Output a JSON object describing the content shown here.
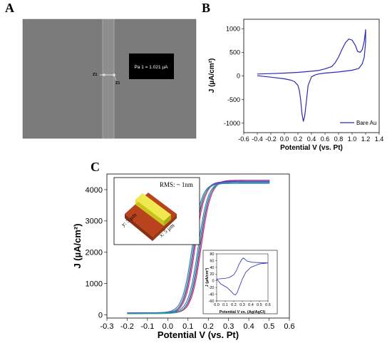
{
  "panels": {
    "a": {
      "letter": "A"
    },
    "b": {
      "letter": "B"
    },
    "c": {
      "letter": "C"
    }
  },
  "sem": {
    "annotation": "Pa 1 = 1.021 µA",
    "marker_left": "Z1",
    "marker_right": "Z1"
  },
  "chart_data": [
    {
      "panel": "B",
      "type": "line",
      "xlabel": "Potential V (vs. Pt)",
      "ylabel": "J (µA/cm²)",
      "xlim": [
        -0.6,
        1.4
      ],
      "ylim": [
        -1200,
        1200
      ],
      "x_ticks": [
        "-0.6",
        "-0.4",
        "-0.2",
        "0.0",
        "0.2",
        "0.4",
        "0.6",
        "0.8",
        "1.0",
        "1.2",
        "1.4"
      ],
      "y_ticks": [
        "-1000",
        "-500",
        "0",
        "500",
        "1000"
      ],
      "legend_position": "bottom-right",
      "color": "#2a2ab8",
      "series": [
        {
          "name": "Bare Au",
          "points": [
            [
              -0.4,
              40
            ],
            [
              -0.2,
              50
            ],
            [
              0.0,
              60
            ],
            [
              0.2,
              75
            ],
            [
              0.4,
              100
            ],
            [
              0.5,
              115
            ],
            [
              0.6,
              150
            ],
            [
              0.7,
              200
            ],
            [
              0.75,
              280
            ],
            [
              0.8,
              400
            ],
            [
              0.85,
              560
            ],
            [
              0.9,
              700
            ],
            [
              0.95,
              780
            ],
            [
              1.0,
              760
            ],
            [
              1.05,
              640
            ],
            [
              1.08,
              520
            ],
            [
              1.12,
              500
            ],
            [
              1.15,
              560
            ],
            [
              1.18,
              740
            ],
            [
              1.2,
              980
            ],
            [
              1.2,
              720
            ],
            [
              1.18,
              400
            ],
            [
              1.15,
              260
            ],
            [
              1.1,
              160
            ],
            [
              1.0,
              120
            ],
            [
              0.8,
              85
            ],
            [
              0.6,
              60
            ],
            [
              0.5,
              40
            ],
            [
              0.45,
              20
            ],
            [
              0.4,
              -20
            ],
            [
              0.35,
              -200
            ],
            [
              0.32,
              -600
            ],
            [
              0.3,
              -850
            ],
            [
              0.28,
              -960
            ],
            [
              0.26,
              -800
            ],
            [
              0.24,
              -500
            ],
            [
              0.22,
              -300
            ],
            [
              0.2,
              -200
            ],
            [
              0.15,
              -120
            ],
            [
              0.1,
              -90
            ],
            [
              0.0,
              -60
            ],
            [
              -0.2,
              -25
            ],
            [
              -0.4,
              5
            ]
          ]
        }
      ]
    },
    {
      "panel": "C",
      "type": "line",
      "xlabel": "Potential V (vs. Pt)",
      "ylabel": "J (µA/cm²)",
      "xlim": [
        -0.3,
        0.6
      ],
      "ylim": [
        -100,
        4500
      ],
      "x_ticks": [
        "-0.3",
        "-0.2",
        "-0.1",
        "0.0",
        "0.1",
        "0.2",
        "0.3",
        "0.4",
        "0.5",
        "0.6"
      ],
      "y_ticks": [
        "0",
        "1000",
        "2000",
        "3000",
        "4000"
      ],
      "series": [
        {
          "color": "#d21f6e",
          "forward_midpoint": 0.135,
          "reverse_midpoint": 0.165,
          "plateau": 4250,
          "start": 50
        },
        {
          "color": "#7a2db5",
          "forward_midpoint": 0.13,
          "reverse_midpoint": 0.16,
          "plateau": 4260,
          "start": 60
        },
        {
          "color": "#2bb07a",
          "forward_midpoint": 0.125,
          "reverse_midpoint": 0.155,
          "plateau": 4200,
          "start": 40
        },
        {
          "color": "#3a6fd0",
          "forward_midpoint": 0.12,
          "reverse_midpoint": 0.15,
          "plateau": 4210,
          "start": 70
        }
      ]
    },
    {
      "panel": "C-inset",
      "type": "line",
      "xlabel": "Potential V vs. (Ag/AgCl)",
      "ylabel": "J (µA/cm²)",
      "xlim": [
        0.0,
        0.6
      ],
      "ylim": [
        -60,
        80
      ],
      "x_ticks": [
        "0.0",
        "0.1",
        "0.2",
        "0.3",
        "0.4",
        "0.5",
        "0.6"
      ],
      "y_ticks": [
        "-60",
        "-40",
        "-20",
        "0",
        "20",
        "40",
        "60",
        "80"
      ],
      "color": "#2a2ab8",
      "series": [
        {
          "points": [
            [
              0.0,
              5
            ],
            [
              0.1,
              7
            ],
            [
              0.15,
              10
            ],
            [
              0.2,
              18
            ],
            [
              0.23,
              30
            ],
            [
              0.26,
              48
            ],
            [
              0.29,
              62
            ],
            [
              0.31,
              68
            ],
            [
              0.33,
              64
            ],
            [
              0.36,
              58
            ],
            [
              0.42,
              55
            ],
            [
              0.5,
              54
            ],
            [
              0.6,
              53
            ],
            [
              0.5,
              50
            ],
            [
              0.4,
              40
            ],
            [
              0.34,
              25
            ],
            [
              0.3,
              5
            ],
            [
              0.27,
              -15
            ],
            [
              0.24,
              -35
            ],
            [
              0.22,
              -42
            ],
            [
              0.2,
              -40
            ],
            [
              0.17,
              -32
            ],
            [
              0.12,
              -20
            ],
            [
              0.05,
              -10
            ],
            [
              0.0,
              5
            ]
          ]
        }
      ]
    }
  ],
  "afm_inset": {
    "rms": "RMS: ~ 1nm",
    "y_dim": "y: 5 µm",
    "x_dim": "x: 5 µm"
  }
}
